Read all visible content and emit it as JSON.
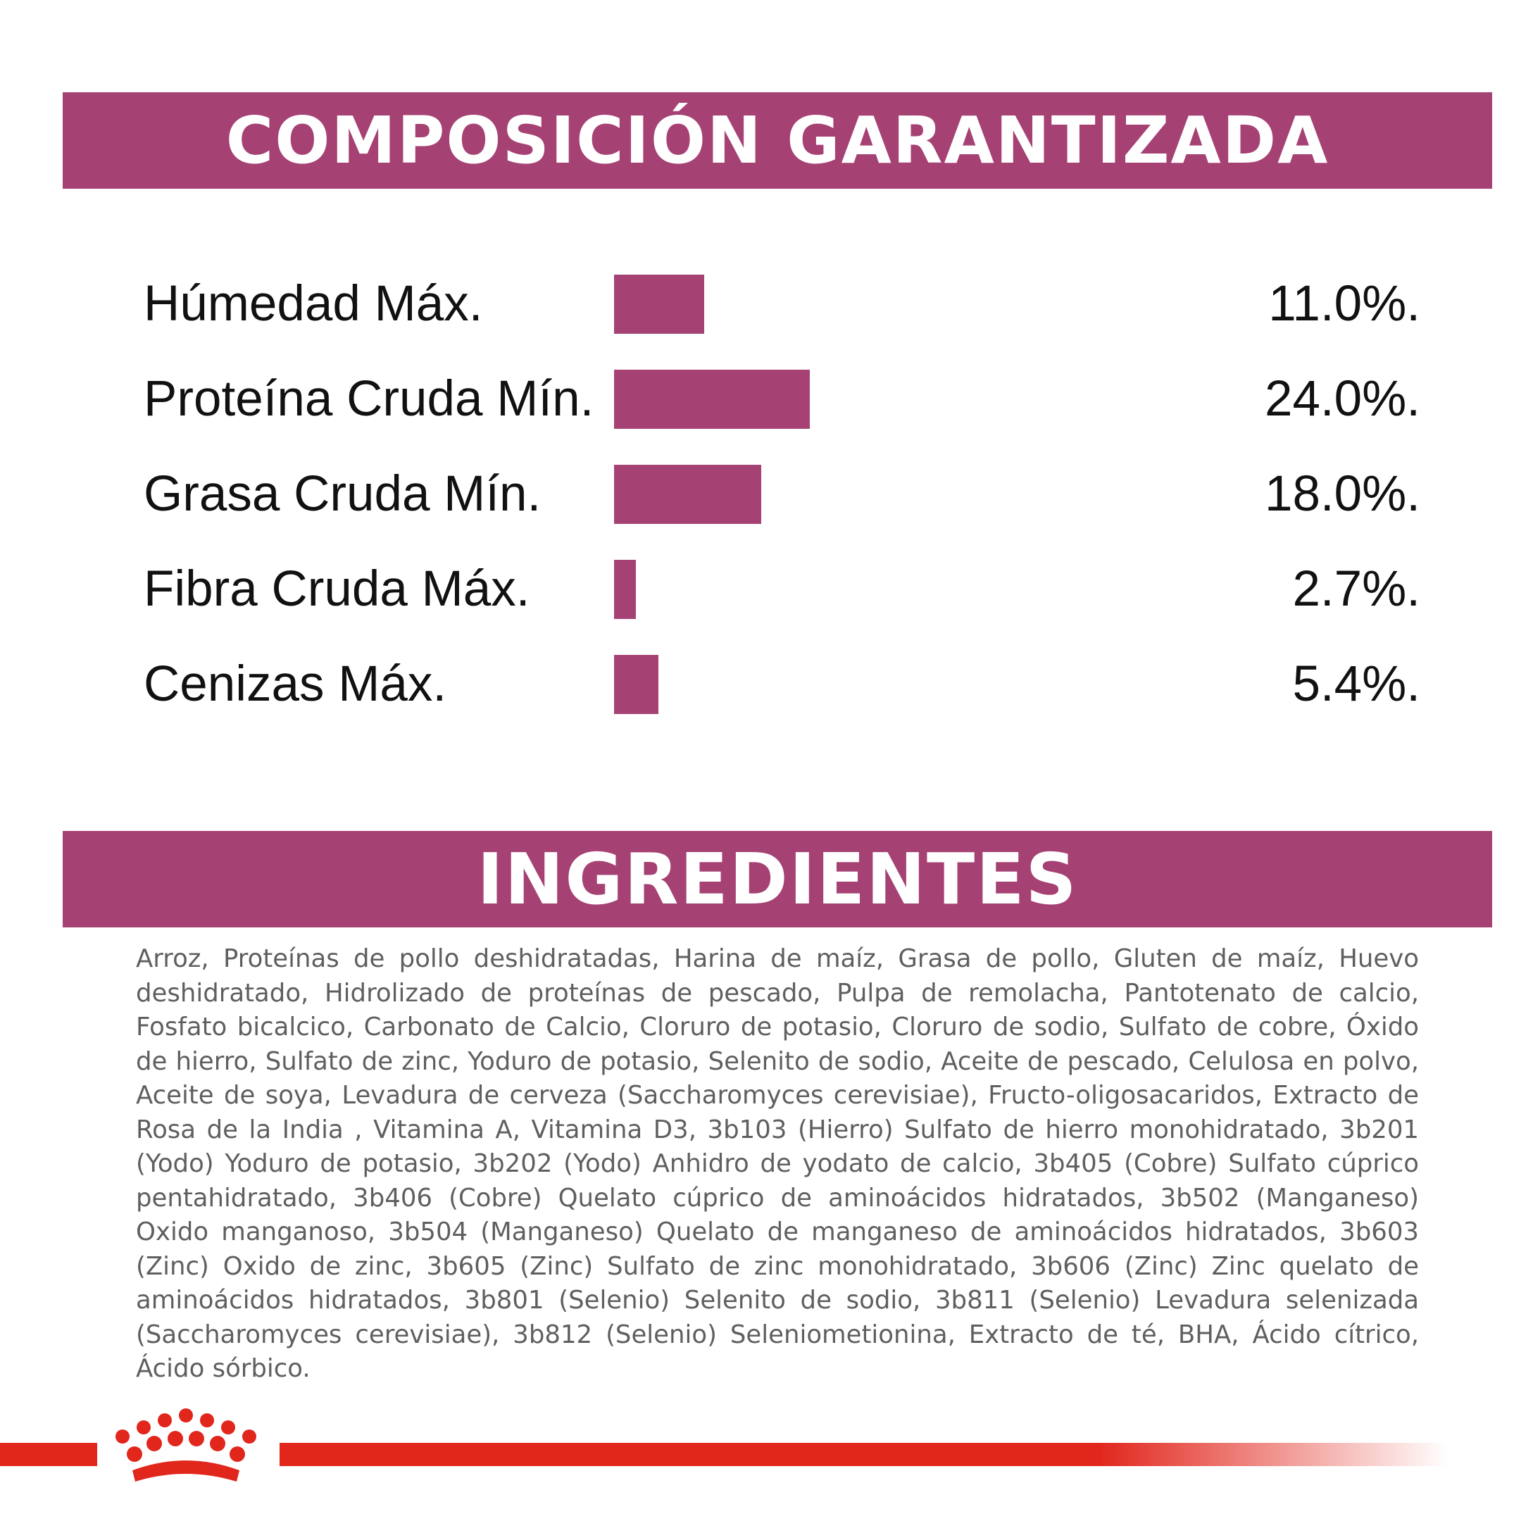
{
  "colors": {
    "accent": "#A64273",
    "text_dark": "#111111",
    "text_gray": "#5F5F5F",
    "brand_red": "#E1261C",
    "background": "#FFFFFF"
  },
  "sections": {
    "composition_title": "COMPOSICIÓN GARANTIZADA",
    "ingredients_title": "INGREDIENTES"
  },
  "chart_data": {
    "type": "bar",
    "orientation": "horizontal",
    "title": "COMPOSICIÓN GARANTIZADA",
    "categories": [
      "Húmedad Máx.",
      "Proteína Cruda Mín.",
      "Grasa Cruda Mín.",
      "Fibra Cruda Máx.",
      "Cenizas Máx."
    ],
    "values": [
      11.0,
      24.0,
      18.0,
      2.7,
      5.4
    ],
    "value_labels": [
      "11.0%.",
      "24.0%.",
      "18.0%.",
      "2.7%.",
      "5.4%."
    ],
    "unit": "%",
    "grid": false,
    "legend": "none"
  },
  "ingredients": {
    "text": "Arroz, Proteínas de pollo deshidratadas, Harina de maíz, Grasa de pollo, Gluten de maíz, Huevo deshidratado, Hidrolizado de proteínas de pescado, Pulpa de remolacha, Pantotenato de calcio, Fosfato bicalcico, Carbonato de Calcio, Cloruro de potasio, Cloruro de sodio, Sulfato de cobre, Óxido de hierro, Sulfato de zinc, Yoduro de potasio, Selenito de sodio, Aceite de pescado, Celulosa en polvo, Aceite de soya, Levadura de cerveza (Saccharomyces cerevisiae), Fructo-oligosacaridos, Extracto de Rosa de la India , Vitamina A, Vitamina D3, 3b103 (Hierro) Sulfato de hierro monohidratado, 3b201 (Yodo) Yoduro de potasio, 3b202 (Yodo) Anhidro de yodato de calcio, 3b405 (Cobre) Sulfato cúprico pentahidratado, 3b406 (Cobre) Quelato cúprico de aminoácidos hidratados, 3b502 (Manganeso) Oxido manganoso, 3b504 (Manganeso) Quelato de manganeso de aminoácidos hidratados, 3b603 (Zinc) Oxido de zinc, 3b605 (Zinc) Sulfato de zinc monohidratado, 3b606 (Zinc)  Zinc quelato de aminoácidos hidratados, 3b801 (Selenio) Selenito de sodio, 3b811 (Selenio) Levadura selenizada (Saccharomyces cerevisiae), 3b812 (Selenio) Seleniometionina, Extracto de té, BHA, Ácido cítrico, Ácido sórbico."
  },
  "footer": {
    "logo_icon": "royal-crown-icon"
  }
}
